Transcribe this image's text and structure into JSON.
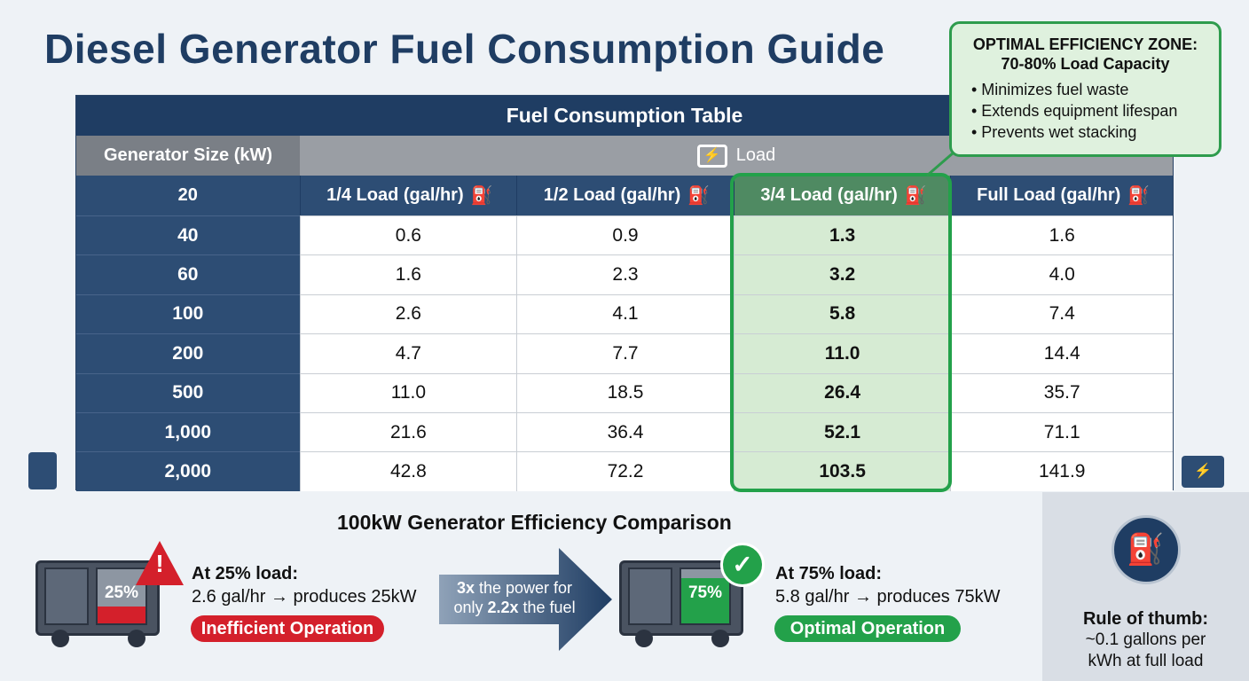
{
  "title": "Diesel Generator Fuel Consumption Guide",
  "table": {
    "title": "Fuel Consumption Table",
    "size_header": "Generator Size (kW)",
    "load_header": "Load",
    "first_size": "20",
    "columns": [
      "1/4 Load (gal/hr)",
      "1/2 Load (gal/hr)",
      "3/4 Load (gal/hr)",
      "Full Load (gal/hr)"
    ],
    "rows": [
      {
        "size": "40",
        "v": [
          "0.6",
          "0.9",
          "1.3",
          "1.6"
        ]
      },
      {
        "size": "60",
        "v": [
          "1.6",
          "2.3",
          "3.2",
          "4.0"
        ]
      },
      {
        "size": "100",
        "v": [
          "2.6",
          "4.1",
          "5.8",
          "7.4"
        ]
      },
      {
        "size": "200",
        "v": [
          "4.7",
          "7.7",
          "11.0",
          "14.4"
        ]
      },
      {
        "size": "500",
        "v": [
          "11.0",
          "18.5",
          "26.4",
          "35.7"
        ]
      },
      {
        "size": "1,000",
        "v": [
          "21.6",
          "36.4",
          "52.1",
          "71.1"
        ]
      },
      {
        "size": "2,000",
        "v": [
          "42.8",
          "72.2",
          "103.5",
          "141.9"
        ]
      }
    ]
  },
  "callout": {
    "heading1": "OPTIMAL EFFICIENCY ZONE:",
    "heading2": "70-80% Load Capacity",
    "bullets": [
      "• Minimizes fuel waste",
      "• Extends equipment lifespan",
      "• Prevents wet stacking"
    ]
  },
  "comparison": {
    "title": "100kW Generator Efficiency Comparison",
    "low": {
      "gauge": "25%",
      "heading": "At 25% load:",
      "detail": "2.6 gal/hr → produces 25kW",
      "badge": "Inefficient Operation"
    },
    "arrow": {
      "a": "3x",
      "b": " the power for",
      "c": "only ",
      "d": "2.2x",
      "e": " the fuel"
    },
    "high": {
      "gauge": "75%",
      "heading": "At 75% load:",
      "detail": "5.8 gal/hr → produces 75kW",
      "badge": "Optimal Operation"
    }
  },
  "rule": {
    "heading": "Rule of thumb:",
    "line1": "~0.1 gallons per",
    "line2": "kWh at full load"
  },
  "colors": {
    "navy": "#1f3d63",
    "green": "#23a14a",
    "red": "#d4202b"
  }
}
